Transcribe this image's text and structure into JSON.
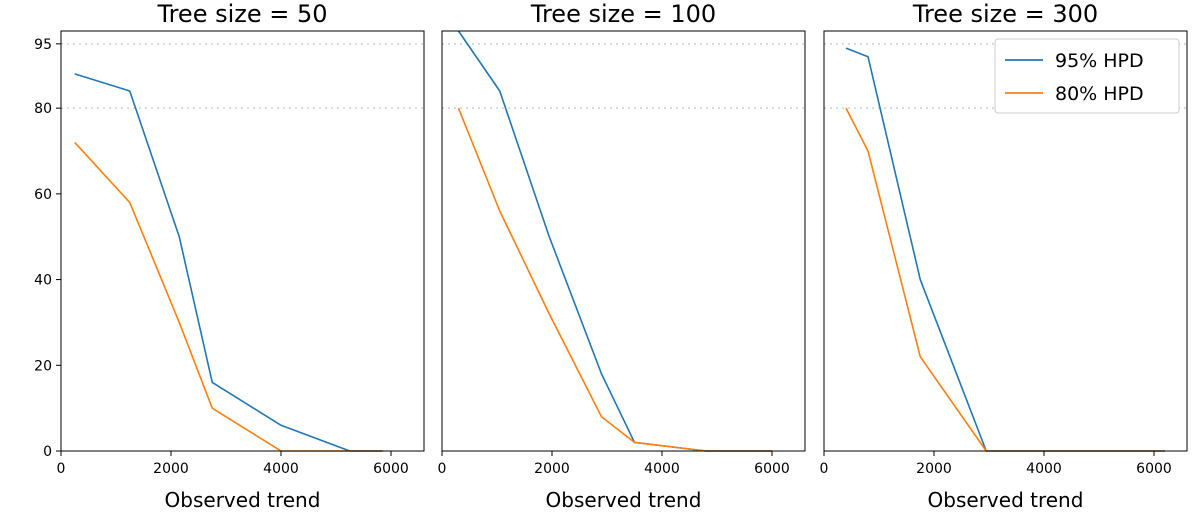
{
  "chart_data": [
    {
      "type": "line",
      "title": "Tree size = 50",
      "xlabel": "Observed trend",
      "xlim": [
        0,
        6600
      ],
      "ylim": [
        0,
        98
      ],
      "xticks": [
        0,
        2000,
        4000,
        6000
      ],
      "yticks": [
        0,
        20,
        40,
        60,
        80,
        95
      ],
      "reference_lines": [
        80,
        95
      ],
      "series": [
        {
          "name": "95% HPD",
          "color": "#1f77b4",
          "x": [
            250,
            1250,
            2150,
            2750,
            4000,
            5250,
            5850
          ],
          "values": [
            88,
            84,
            50,
            16,
            6,
            0,
            0
          ]
        },
        {
          "name": "80% HPD",
          "color": "#ff7f0e",
          "x": [
            250,
            1250,
            2150,
            2750,
            4000,
            5250,
            5850
          ],
          "values": [
            72,
            58,
            30,
            10,
            0,
            0,
            0
          ]
        }
      ]
    },
    {
      "type": "line",
      "title": "Tree size = 100",
      "xlabel": "Observed trend",
      "xlim": [
        0,
        6600
      ],
      "ylim": [
        0,
        98
      ],
      "xticks": [
        0,
        2000,
        4000,
        6000
      ],
      "yticks": [],
      "reference_lines": [
        80,
        95
      ],
      "series": [
        {
          "name": "95% HPD",
          "color": "#1f77b4",
          "x": [
            300,
            1050,
            1950,
            2900,
            3500,
            4800,
            6000
          ],
          "values": [
            98,
            84,
            50,
            18,
            2,
            0,
            0
          ]
        },
        {
          "name": "80% HPD",
          "color": "#ff7f0e",
          "x": [
            300,
            1050,
            1950,
            2900,
            3500,
            4800,
            6000
          ],
          "values": [
            80,
            56,
            32,
            8,
            2,
            0,
            0
          ]
        }
      ]
    },
    {
      "type": "line",
      "title": "Tree size = 300",
      "xlabel": "Observed trend",
      "xlim": [
        0,
        6600
      ],
      "ylim": [
        0,
        98
      ],
      "xticks": [
        0,
        2000,
        4000,
        6000
      ],
      "yticks": [],
      "reference_lines": [
        80,
        95
      ],
      "legend_position": "top-right",
      "series": [
        {
          "name": "95% HPD",
          "color": "#1f77b4",
          "x": [
            400,
            800,
            1750,
            2950,
            6200
          ],
          "values": [
            94,
            92,
            40,
            0,
            0
          ]
        },
        {
          "name": "80% HPD",
          "color": "#ff7f0e",
          "x": [
            400,
            800,
            1750,
            2950,
            6200
          ],
          "values": [
            80,
            70,
            22,
            0,
            0
          ]
        }
      ]
    }
  ]
}
